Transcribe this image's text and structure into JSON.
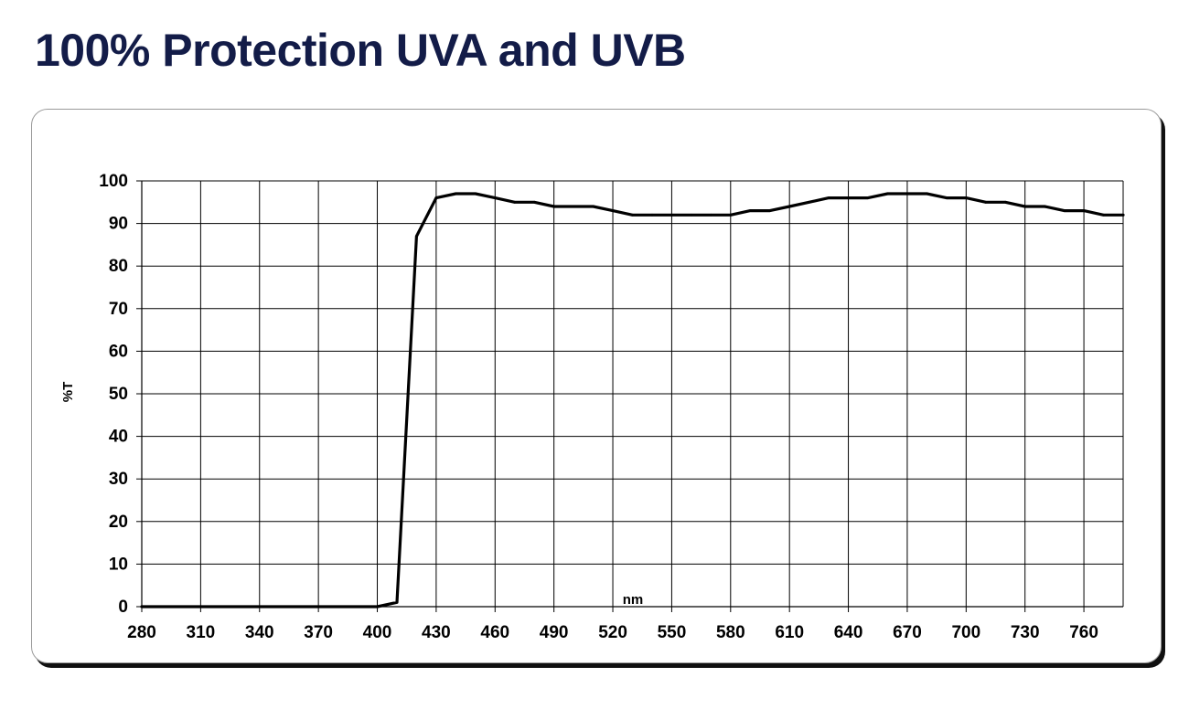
{
  "page": {
    "title": "100% Protection UVA and UVB"
  },
  "chart_data": {
    "type": "line",
    "title": "",
    "xlabel": "nm",
    "ylabel": "%T",
    "xlim": [
      280,
      780
    ],
    "ylim": [
      0,
      100
    ],
    "x_ticks": [
      280,
      310,
      340,
      370,
      400,
      430,
      460,
      490,
      520,
      550,
      580,
      610,
      640,
      670,
      700,
      730,
      760
    ],
    "y_ticks": [
      0,
      10,
      20,
      30,
      40,
      50,
      60,
      70,
      80,
      90,
      100
    ],
    "grid": true,
    "legend": "none",
    "series": [
      {
        "color": "#000000",
        "x": [
          280,
          300,
          350,
          400,
          410,
          420,
          430,
          440,
          450,
          460,
          470,
          480,
          490,
          500,
          510,
          520,
          530,
          540,
          550,
          560,
          570,
          580,
          590,
          600,
          610,
          620,
          630,
          640,
          650,
          660,
          670,
          680,
          690,
          700,
          710,
          720,
          730,
          740,
          750,
          760,
          770,
          780
        ],
        "y": [
          0,
          0,
          0,
          0,
          1,
          87,
          96,
          97,
          97,
          96,
          95,
          95,
          94,
          94,
          94,
          93,
          92,
          92,
          92,
          92,
          92,
          92,
          93,
          93,
          94,
          95,
          96,
          96,
          96,
          97,
          97,
          97,
          96,
          96,
          95,
          95,
          94,
          94,
          93,
          93,
          92,
          92
        ]
      }
    ]
  }
}
